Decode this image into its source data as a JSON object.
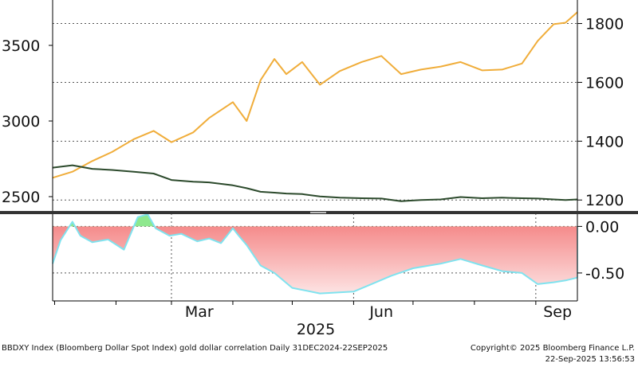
{
  "footer": {
    "source": "BBDXY Index (Bloomberg Dollar Spot Index) gold dollar correlation  Daily 31DEC2024-22SEP2025",
    "copyright": "Copyright© 2025 Bloomberg Finance L.P.",
    "timestamp": "22-Sep-2025 13:56:53"
  },
  "colors": {
    "gold": "#f0ad3a",
    "dollar": "#2c4a2c",
    "corr_negative_fill": "#f37b7b",
    "corr_positive_fill": "#8ee88e",
    "corr_line": "#7fe3ef",
    "grid": "#555555"
  },
  "chart_data": [
    {
      "type": "line",
      "panel": "upper",
      "x_range": [
        "2024-12-31",
        "2025-09-22"
      ],
      "left_axis": {
        "ticks": [
          2500,
          3000,
          3500
        ],
        "tick_labels": [
          "2500",
          "3000",
          "3500"
        ],
        "range": [
          2400,
          3800
        ]
      },
      "right_axis": {
        "ticks": [
          1200,
          1400,
          1600,
          1800
        ],
        "tick_labels": [
          "1200",
          "1400",
          "1600",
          "1800"
        ],
        "range": [
          1160,
          1880
        ]
      },
      "grid": "dotted horizontal at right-axis ticks",
      "series": [
        {
          "axis": "left",
          "x": [
            "2024-12-31",
            "2025-01-10",
            "2025-01-20",
            "2025-01-30",
            "2025-02-10",
            "2025-02-20",
            "2025-03-01",
            "2025-03-12",
            "2025-03-20",
            "2025-04-01",
            "2025-04-08",
            "2025-04-15",
            "2025-04-22",
            "2025-04-28",
            "2025-05-06",
            "2025-05-15",
            "2025-05-25",
            "2025-06-05",
            "2025-06-15",
            "2025-06-25",
            "2025-07-05",
            "2025-07-15",
            "2025-07-25",
            "2025-08-05",
            "2025-08-15",
            "2025-08-25",
            "2025-09-02",
            "2025-09-10",
            "2025-09-16",
            "2025-09-22"
          ],
          "values": [
            2625,
            2665,
            2735,
            2795,
            2880,
            2935,
            2860,
            2925,
            3020,
            3125,
            3000,
            3270,
            3410,
            3310,
            3390,
            3240,
            3330,
            3390,
            3430,
            3310,
            3340,
            3360,
            3390,
            3335,
            3340,
            3380,
            3530,
            3640,
            3650,
            3720
          ]
        },
        {
          "axis": "right",
          "x": [
            "2024-12-31",
            "2025-01-10",
            "2025-01-20",
            "2025-01-30",
            "2025-02-10",
            "2025-02-20",
            "2025-03-01",
            "2025-03-12",
            "2025-03-20",
            "2025-04-01",
            "2025-04-08",
            "2025-04-15",
            "2025-04-22",
            "2025-04-28",
            "2025-05-06",
            "2025-05-15",
            "2025-05-25",
            "2025-06-05",
            "2025-06-15",
            "2025-06-25",
            "2025-07-05",
            "2025-07-15",
            "2025-07-25",
            "2025-08-05",
            "2025-08-15",
            "2025-08-25",
            "2025-09-02",
            "2025-09-10",
            "2025-09-16",
            "2025-09-22"
          ],
          "values": [
            1310,
            1318,
            1306,
            1302,
            1296,
            1290,
            1268,
            1262,
            1260,
            1250,
            1240,
            1228,
            1225,
            1222,
            1220,
            1212,
            1208,
            1206,
            1205,
            1196,
            1200,
            1202,
            1210,
            1206,
            1208,
            1206,
            1205,
            1202,
            1200,
            1202
          ]
        }
      ]
    },
    {
      "type": "area",
      "panel": "lower",
      "x_range": [
        "2024-12-31",
        "2025-09-22"
      ],
      "y_axis": {
        "ticks": [
          0.0,
          -0.5
        ],
        "tick_labels": [
          "0.00",
          "-0.50"
        ],
        "range": [
          -0.8,
          0.14
        ]
      },
      "x_axis": {
        "tick_labels": [
          "Mar",
          "Jun",
          "Sep"
        ],
        "year_label": "2025"
      },
      "series": [
        {
          "x": [
            "2024-12-31",
            "2025-01-04",
            "2025-01-10",
            "2025-01-14",
            "2025-01-20",
            "2025-01-28",
            "2025-02-05",
            "2025-02-12",
            "2025-02-17",
            "2025-02-21",
            "2025-02-28",
            "2025-03-06",
            "2025-03-14",
            "2025-03-20",
            "2025-03-26",
            "2025-04-01",
            "2025-04-04",
            "2025-04-08",
            "2025-04-15",
            "2025-04-22",
            "2025-05-01",
            "2025-05-15",
            "2025-06-01",
            "2025-06-10",
            "2025-06-20",
            "2025-07-01",
            "2025-07-15",
            "2025-07-25",
            "2025-08-05",
            "2025-08-15",
            "2025-08-25",
            "2025-09-02",
            "2025-09-10",
            "2025-09-16",
            "2025-09-22"
          ],
          "values": [
            -0.4,
            -0.15,
            0.05,
            -0.1,
            -0.17,
            -0.14,
            -0.25,
            0.1,
            0.13,
            -0.02,
            -0.1,
            -0.08,
            -0.16,
            -0.13,
            -0.18,
            -0.02,
            -0.1,
            -0.2,
            -0.42,
            -0.5,
            -0.66,
            -0.72,
            -0.7,
            -0.62,
            -0.53,
            -0.45,
            -0.4,
            -0.35,
            -0.42,
            -0.48,
            -0.5,
            -0.62,
            -0.6,
            -0.58,
            -0.55
          ]
        }
      ]
    }
  ]
}
